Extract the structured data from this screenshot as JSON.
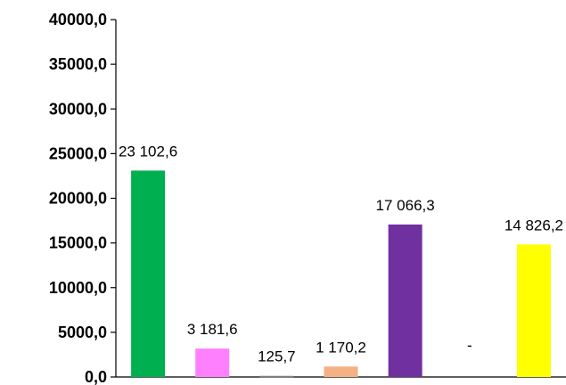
{
  "chart_data": {
    "type": "bar",
    "title": "",
    "xlabel": "",
    "ylabel": "",
    "ylim": [
      0,
      40000
    ],
    "y_ticks": [
      0,
      5000,
      10000,
      15000,
      20000,
      25000,
      30000,
      35000,
      40000
    ],
    "y_tick_labels": [
      "0,0",
      "5000,0",
      "10000,0",
      "15000,0",
      "20000,0",
      "25000,0",
      "30000,0",
      "35000,0",
      "40000,0"
    ],
    "grid": false,
    "legend": "none",
    "categories": [
      "",
      "",
      "",
      "",
      "",
      "",
      ""
    ],
    "values": [
      23102.6,
      3181.6,
      125.7,
      1170.2,
      17066.3,
      null,
      14826.2
    ],
    "data_labels": [
      "23 102,6",
      "3 181,6",
      "125,7",
      "1 170,2",
      "17 066,3",
      "-",
      "14 826,2"
    ],
    "colors": [
      "#00b050",
      "#ff80ff",
      "#7f7f7f",
      "#f4b183",
      "#7030a0",
      "#ffffff",
      "#ffff00"
    ]
  }
}
